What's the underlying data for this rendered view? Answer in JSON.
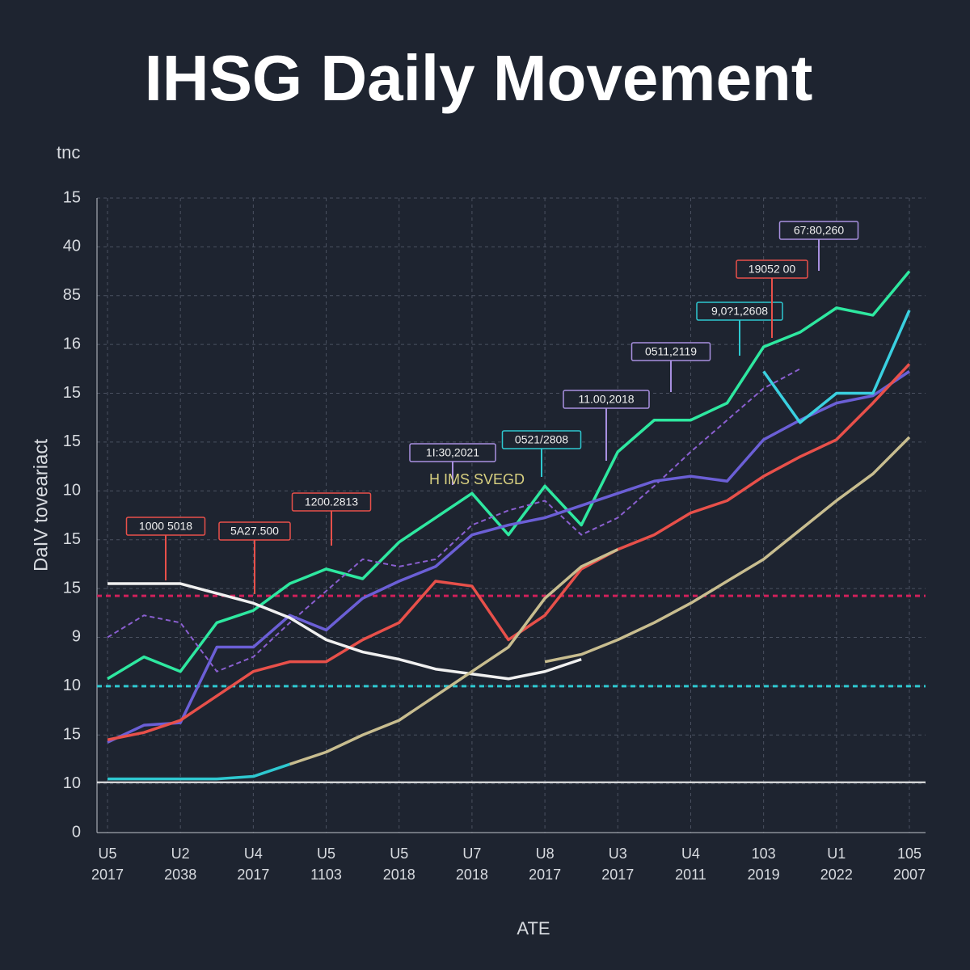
{
  "chart_data": {
    "type": "line",
    "title": "IHSG Daily Movement",
    "unit_label": "tnc",
    "ylabel": "DaIV toveariact",
    "xlabel": "ATE",
    "x": [
      0,
      0.5,
      1,
      1.5,
      2,
      2.5,
      3,
      3.5,
      4,
      4.5,
      5,
      5.5,
      6,
      6.5,
      7,
      7.5,
      8,
      8.5,
      9,
      9.5,
      10,
      10.5,
      11
    ],
    "xlim": [
      0,
      11
    ],
    "xticks": [
      {
        "value": 0,
        "label": [
          "U5",
          "2017"
        ]
      },
      {
        "value": 1,
        "label": [
          "U2",
          "2038"
        ]
      },
      {
        "value": 2,
        "label": [
          "U4",
          "2017"
        ]
      },
      {
        "value": 3,
        "label": [
          "U5",
          "1103"
        ]
      },
      {
        "value": 4,
        "label": [
          "U5",
          "2018"
        ]
      },
      {
        "value": 5,
        "label": [
          "U7",
          "2018"
        ]
      },
      {
        "value": 6,
        "label": [
          "U8",
          "2017"
        ]
      },
      {
        "value": 7,
        "label": [
          "U3",
          "2017"
        ]
      },
      {
        "value": 8,
        "label": [
          "U4",
          "2011"
        ]
      },
      {
        "value": 9,
        "label": [
          "103",
          "2019"
        ]
      },
      {
        "value": 10,
        "label": [
          "U1",
          "2022"
        ]
      },
      {
        "value": 11,
        "label": [
          "105",
          "2007"
        ]
      }
    ],
    "ylim": [
      0,
      13
    ],
    "yticks": [
      {
        "value": 0,
        "label": "0"
      },
      {
        "value": 1,
        "label": "10"
      },
      {
        "value": 2,
        "label": "15"
      },
      {
        "value": 3,
        "label": "10"
      },
      {
        "value": 4,
        "label": "9"
      },
      {
        "value": 5,
        "label": "15"
      },
      {
        "value": 6,
        "label": "15"
      },
      {
        "value": 7,
        "label": "10"
      },
      {
        "value": 8,
        "label": "15"
      },
      {
        "value": 9,
        "label": "15"
      },
      {
        "value": 10,
        "label": "16"
      },
      {
        "value": 11,
        "label": "85"
      },
      {
        "value": 12,
        "label": "40"
      },
      {
        "value": 13,
        "label": "15"
      }
    ],
    "grid": true,
    "series": [
      {
        "color": "#2ee8a0",
        "dash": false,
        "values": [
          3.15,
          3.6,
          3.3,
          4.3,
          4.55,
          5.1,
          5.4,
          5.2,
          5.95,
          6.45,
          6.95,
          6.1,
          7.1,
          6.3,
          7.8,
          8.45,
          8.45,
          8.8,
          9.95,
          10.25,
          10.75,
          10.6,
          11.5
        ]
      },
      {
        "color": "#8a5fd0",
        "dash": true,
        "values": [
          4.0,
          4.45,
          4.3,
          3.3,
          3.6,
          4.3,
          4.95,
          5.6,
          5.45,
          5.6,
          6.3,
          6.6,
          6.8,
          6.1,
          6.45,
          7.1,
          7.8,
          8.45,
          9.1,
          9.5,
          null,
          null,
          null
        ]
      },
      {
        "color": "#6b5fd6",
        "dash": false,
        "values": [
          1.85,
          2.2,
          2.25,
          3.8,
          3.8,
          4.45,
          4.15,
          4.8,
          5.15,
          5.45,
          6.1,
          6.3,
          6.45,
          6.7,
          6.95,
          7.2,
          7.3,
          7.2,
          8.05,
          8.45,
          8.8,
          8.95,
          9.45
        ]
      },
      {
        "color": "#e8504a",
        "dash": false,
        "values": [
          1.9,
          2.05,
          2.3,
          2.8,
          3.3,
          3.5,
          3.5,
          3.95,
          4.3,
          5.15,
          5.05,
          3.95,
          4.45,
          5.4,
          5.8,
          6.1,
          6.55,
          6.8,
          7.3,
          7.7,
          8.05,
          8.8,
          9.6
        ]
      },
      {
        "color": "#f0f0f0",
        "dash": false,
        "values": [
          5.1,
          5.1,
          5.1,
          4.9,
          4.7,
          4.4,
          3.95,
          3.7,
          3.55,
          3.35,
          3.25,
          3.15,
          3.3,
          3.55,
          null,
          null,
          null,
          null,
          null,
          null,
          null,
          null,
          null
        ]
      },
      {
        "color": "#c8bd8f",
        "dash": false,
        "values": [
          null,
          null,
          null,
          null,
          null,
          1.4,
          1.65,
          2.0,
          2.3,
          2.8,
          3.3,
          3.8,
          4.8,
          5.45,
          5.8,
          null,
          null,
          null,
          null,
          null,
          null,
          null,
          null
        ]
      },
      {
        "color": "#c8bd8f",
        "dash": false,
        "values": [
          null,
          null,
          null,
          null,
          null,
          null,
          null,
          null,
          null,
          null,
          null,
          null,
          3.5,
          3.65,
          3.95,
          4.3,
          4.7,
          5.15,
          5.6,
          6.2,
          6.8,
          7.35,
          8.1
        ]
      },
      {
        "color": "#2ec8d0",
        "dash": false,
        "values": [
          1.1,
          1.1,
          1.1,
          1.1,
          1.15,
          1.4,
          null,
          null,
          null,
          null,
          null,
          null,
          null,
          null,
          null,
          null,
          null,
          null,
          null,
          null,
          null,
          null,
          null
        ]
      },
      {
        "color": "#3ad0e0",
        "dash": false,
        "values": [
          null,
          null,
          null,
          null,
          null,
          null,
          null,
          null,
          null,
          null,
          null,
          null,
          null,
          null,
          null,
          null,
          null,
          null,
          9.45,
          8.4,
          9.0,
          9.0,
          10.7
        ]
      }
    ],
    "reference_lines": [
      {
        "value": 4.85,
        "color": "#d0205a",
        "dash": true
      },
      {
        "value": 3.0,
        "color": "#2ec8d0",
        "dash": true
      },
      {
        "value": 1.03,
        "color": "#f0f0f0",
        "dash": false
      }
    ],
    "annotations": [
      {
        "text": "1000 5018",
        "color": "#e8504a"
      },
      {
        "text": "5A27.500",
        "color": "#e8504a"
      },
      {
        "text": "1200.2813",
        "color": "#e8504a"
      },
      {
        "text": "1I:30,2021",
        "color": "#a890e0"
      },
      {
        "text": "0521/2808",
        "color": "#2ec8d0"
      },
      {
        "text": "11.00,2018",
        "color": "#a890e0"
      },
      {
        "text": "0511,2119",
        "color": "#a890e0"
      },
      {
        "text": "9,0?1,2608",
        "color": "#2ec8d0"
      },
      {
        "text": "19052 00",
        "color": "#e8504a"
      },
      {
        "text": "67:80,260",
        "color": "#a890e0"
      }
    ],
    "inline_label": "H IMS SVEGD"
  }
}
